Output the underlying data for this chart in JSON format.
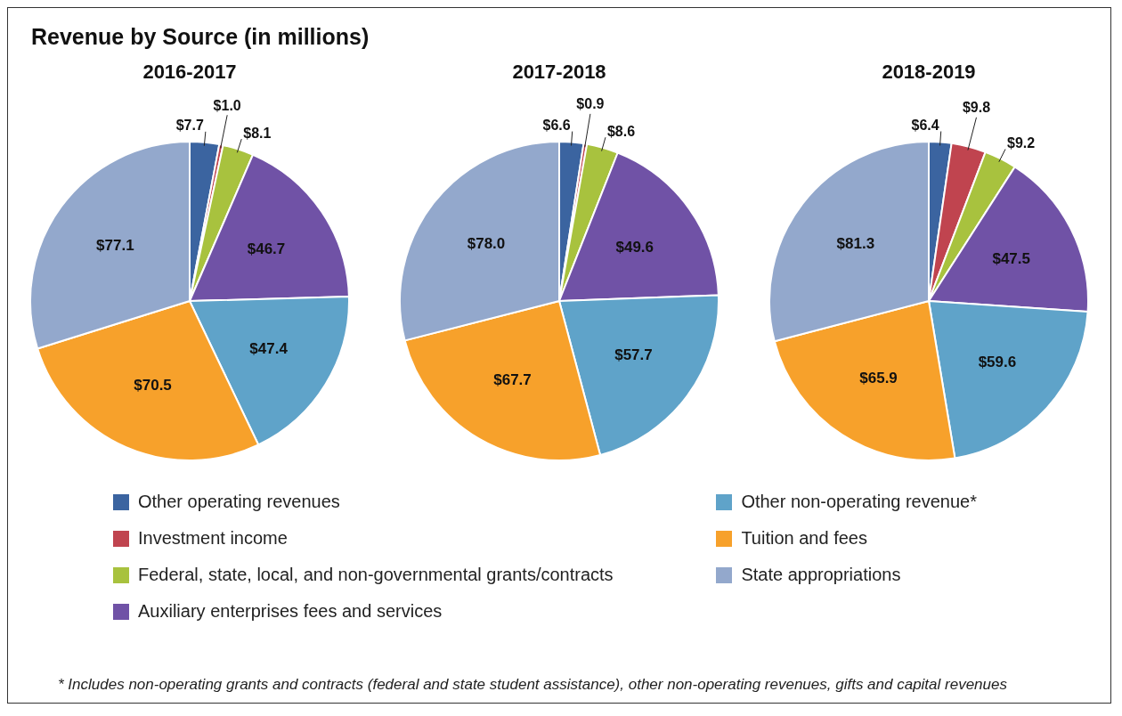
{
  "chart_data": [
    {
      "type": "other",
      "title": "Revenue by Source (in millions)",
      "annotations": [
        "* Includes non-operating grants and contracts (federal and state student assistance), other non-operating revenues, gifts and capital revenues"
      ]
    },
    {
      "type": "pie",
      "title": "2016-2017",
      "legend": "bottom",
      "categories": [
        "Other operating revenues",
        "Investment income",
        "Federal, state, local, and non-governmental grants/contracts",
        "Auxiliary enterprises fees and services",
        "Other non-operating revenue*",
        "Tuition and fees",
        "State appropriations"
      ],
      "values": [
        7.7,
        1.0,
        8.1,
        46.7,
        47.4,
        70.5,
        77.1
      ],
      "value_labels": [
        "$7.7",
        "$1.0",
        "$8.1",
        "$46.7",
        "$47.4",
        "$70.5",
        "$77.1"
      ],
      "colors": [
        "#3b64a0",
        "#c0444f",
        "#a8c23e",
        "#7052a6",
        "#5fa3c9",
        "#f7a12b",
        "#93a8cc"
      ]
    },
    {
      "type": "pie",
      "title": "2017-2018",
      "values": [
        6.6,
        0.9,
        8.6,
        49.6,
        57.7,
        67.7,
        78.0
      ],
      "value_labels": [
        "$6.6",
        "$0.9",
        "$8.6",
        "$49.6",
        "$57.7",
        "$67.7",
        "$78.0"
      ],
      "colors": [
        "#3b64a0",
        "#c0444f",
        "#a8c23e",
        "#7052a6",
        "#5fa3c9",
        "#f7a12b",
        "#93a8cc"
      ]
    },
    {
      "type": "pie",
      "title": "2018-2019",
      "values": [
        6.4,
        9.8,
        9.2,
        47.5,
        59.6,
        65.9,
        81.3
      ],
      "value_labels": [
        "$6.4",
        "$9.8",
        "$9.2",
        "$47.5",
        "$59.6",
        "$65.9",
        "$81.3"
      ],
      "colors": [
        "#3b64a0",
        "#c0444f",
        "#a8c23e",
        "#7052a6",
        "#5fa3c9",
        "#f7a12b",
        "#93a8cc"
      ]
    }
  ]
}
